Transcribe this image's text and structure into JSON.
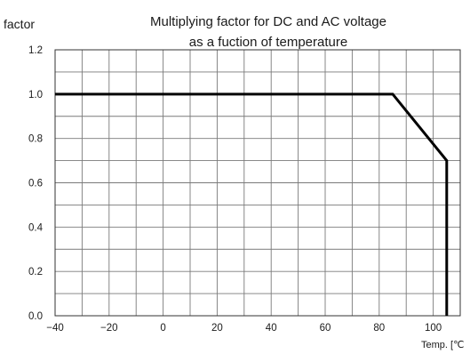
{
  "chart_data": {
    "type": "line",
    "title_lines": [
      "Multiplying  factor for DC and AC voltage",
      "as a fuction of  temperature"
    ],
    "ylabel": "factor",
    "xlabel": "Temp. [℃",
    "xlim": [
      -40,
      110
    ],
    "ylim": [
      0,
      1.2
    ],
    "x_ticks": [
      {
        "value": -40,
        "label": "−40"
      },
      {
        "value": -20,
        "label": "−20"
      },
      {
        "value": 0,
        "label": "0"
      },
      {
        "value": 20,
        "label": "20"
      },
      {
        "value": 40,
        "label": "40"
      },
      {
        "value": 60,
        "label": "60"
      },
      {
        "value": 80,
        "label": "80"
      },
      {
        "value": 100,
        "label": "100"
      }
    ],
    "y_ticks": [
      {
        "value": 0,
        "label": "0.0"
      },
      {
        "value": 0.2,
        "label": "0.2"
      },
      {
        "value": 0.4,
        "label": "0.4"
      },
      {
        "value": 0.6,
        "label": "0.6"
      },
      {
        "value": 0.8,
        "label": "0.8"
      },
      {
        "value": 1.0,
        "label": "1.0"
      },
      {
        "value": 1.2,
        "label": "1.2"
      }
    ],
    "x_grid_step": 10,
    "y_grid_step": 0.1,
    "grid": true,
    "series": [
      {
        "x": [
          -40,
          85,
          105,
          105
        ],
        "y": [
          1.0,
          1.0,
          0.7,
          0.0
        ],
        "color": "#000000"
      }
    ]
  }
}
